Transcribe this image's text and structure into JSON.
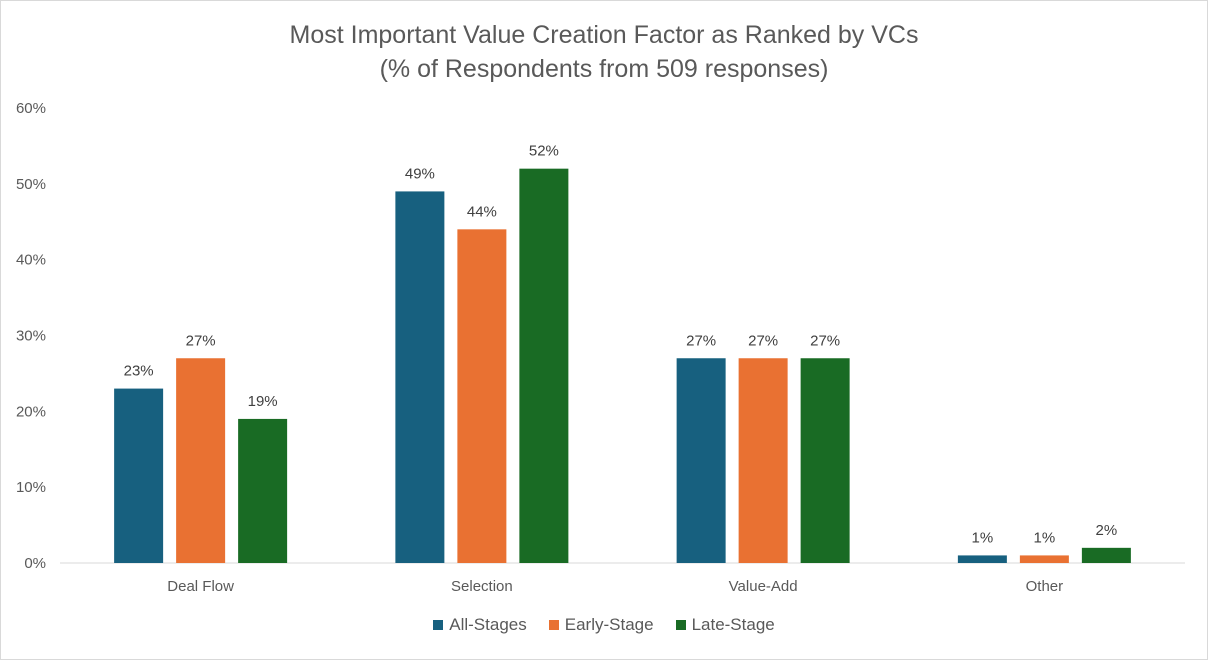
{
  "chart_data": {
    "type": "bar",
    "title": "Most Important Value Creation Factor as Ranked by VCs",
    "subtitle": "(% of Respondents from 509 responses)",
    "xlabel": "",
    "ylabel": "",
    "categories": [
      "Deal Flow",
      "Selection",
      "Value-Add",
      "Other"
    ],
    "series": [
      {
        "name": "All-Stages",
        "color": "#17607f",
        "values": [
          23,
          49,
          27,
          1
        ],
        "labels": [
          "23%",
          "49%",
          "27%",
          "1%"
        ]
      },
      {
        "name": "Early-Stage",
        "color": "#e97132",
        "values": [
          27,
          44,
          27,
          1
        ],
        "labels": [
          "27%",
          "44%",
          "27%",
          "1%"
        ]
      },
      {
        "name": "Late-Stage",
        "color": "#196b24",
        "values": [
          19,
          52,
          27,
          2
        ],
        "labels": [
          "19%",
          "52%",
          "27%",
          "2%"
        ]
      }
    ],
    "ylim": [
      0,
      60
    ],
    "yticks": [
      0,
      10,
      20,
      30,
      40,
      50,
      60
    ],
    "ytick_labels": [
      "0%",
      "10%",
      "20%",
      "30%",
      "40%",
      "50%",
      "60%"
    ],
    "grid": false,
    "legend_position": "bottom"
  }
}
